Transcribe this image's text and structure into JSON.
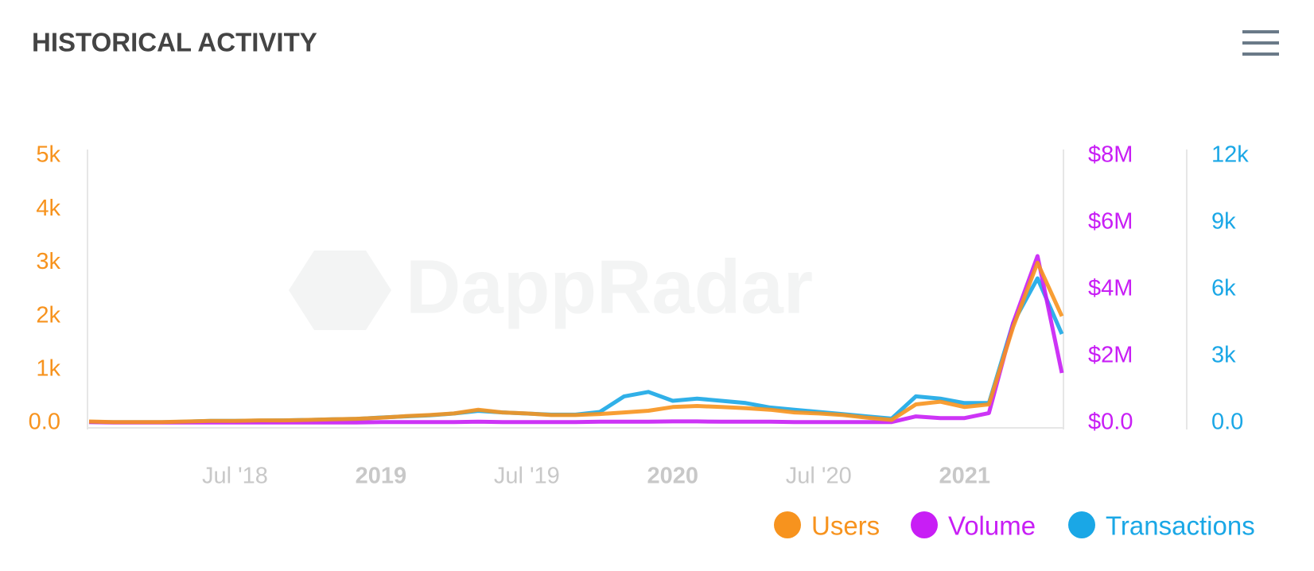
{
  "chart_data": {
    "type": "line",
    "title": "HISTORICAL ACTIVITY",
    "watermark": "DappRadar",
    "x": [
      "2018-01",
      "2018-02",
      "2018-03",
      "2018-04",
      "2018-05",
      "2018-06",
      "2018-07",
      "2018-08",
      "2018-09",
      "2018-10",
      "2018-11",
      "2018-12",
      "2019-01",
      "2019-02",
      "2019-03",
      "2019-04",
      "2019-05",
      "2019-06",
      "2019-07",
      "2019-08",
      "2019-09",
      "2019-10",
      "2019-11",
      "2019-12",
      "2020-01",
      "2020-02",
      "2020-03",
      "2020-04",
      "2020-05",
      "2020-06",
      "2020-07",
      "2020-08",
      "2020-09",
      "2020-10",
      "2020-11",
      "2020-12",
      "2021-01",
      "2021-02",
      "2021-03",
      "2021-04",
      "2021-05"
    ],
    "xlim": [
      "2018-01",
      "2021-05"
    ],
    "xticks": [
      {
        "value": "2018-07",
        "label": "Jul '18"
      },
      {
        "value": "2019-01",
        "label": "2019"
      },
      {
        "value": "2019-07",
        "label": "Jul '19"
      },
      {
        "value": "2020-01",
        "label": "2020"
      },
      {
        "value": "2020-07",
        "label": "Jul '20"
      },
      {
        "value": "2021-01",
        "label": "2021"
      }
    ],
    "ylim": [
      0,
      5000
    ],
    "yticks": [
      {
        "value": 0,
        "label": "0.0"
      },
      {
        "value": 1000,
        "label": "1k"
      },
      {
        "value": 2000,
        "label": "2k"
      },
      {
        "value": 3000,
        "label": "3k"
      },
      {
        "value": 4000,
        "label": "4k"
      },
      {
        "value": 5000,
        "label": "5k"
      }
    ],
    "y2lim": [
      0,
      8000000
    ],
    "y2ticks": [
      {
        "value": 0,
        "label": "$0.0"
      },
      {
        "value": 2000000,
        "label": "$2M"
      },
      {
        "value": 4000000,
        "label": "$4M"
      },
      {
        "value": 6000000,
        "label": "$6M"
      },
      {
        "value": 8000000,
        "label": "$8M"
      }
    ],
    "y3lim": [
      0,
      12000
    ],
    "y3ticks": [
      {
        "value": 0,
        "label": "0.0"
      },
      {
        "value": 3000,
        "label": "3k"
      },
      {
        "value": 6000,
        "label": "6k"
      },
      {
        "value": 9000,
        "label": "9k"
      },
      {
        "value": 12000,
        "label": "12k"
      }
    ],
    "grid": false,
    "series": [
      {
        "name": "Users",
        "color": "#f7931e",
        "axis": "y",
        "values": [
          30,
          20,
          20,
          20,
          30,
          40,
          40,
          50,
          50,
          60,
          70,
          80,
          100,
          130,
          150,
          180,
          250,
          200,
          180,
          150,
          150,
          170,
          200,
          230,
          300,
          320,
          300,
          280,
          250,
          200,
          180,
          150,
          100,
          60,
          350,
          400,
          300,
          350,
          1800,
          3000,
          2000
        ]
      },
      {
        "name": "Volume",
        "color": "#c81ef5",
        "axis": "y2",
        "values": [
          30000,
          20000,
          20000,
          20000,
          20000,
          20000,
          20000,
          20000,
          20000,
          20000,
          20000,
          20000,
          30000,
          30000,
          30000,
          30000,
          40000,
          30000,
          30000,
          30000,
          30000,
          40000,
          40000,
          40000,
          50000,
          50000,
          40000,
          40000,
          40000,
          30000,
          30000,
          30000,
          30000,
          30000,
          200000,
          150000,
          150000,
          300000,
          3000000,
          5000000,
          1500000
        ]
      },
      {
        "name": "Transactions",
        "color": "#1aa7e6",
        "axis": "y3",
        "values": [
          50,
          40,
          40,
          40,
          60,
          100,
          100,
          110,
          120,
          140,
          170,
          190,
          250,
          300,
          350,
          430,
          550,
          480,
          430,
          380,
          380,
          500,
          1200,
          1400,
          1000,
          1100,
          1000,
          900,
          700,
          600,
          500,
          400,
          300,
          200,
          1200,
          1100,
          900,
          900,
          4500,
          6500,
          4000
        ]
      }
    ]
  }
}
